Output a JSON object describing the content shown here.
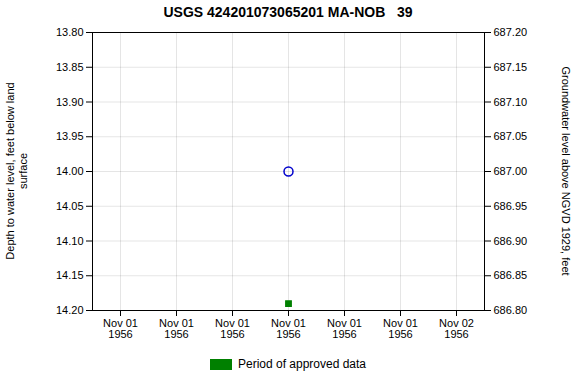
{
  "chart_data": {
    "type": "scatter",
    "title": "USGS 424201073065201 MA-NOB   39",
    "ylabel": "Depth to water level, feet below land\nsurface",
    "y2label": "Groundwater level above NGVD 1929, feet",
    "categories": [
      "Nov 01\n1956",
      "Nov 01\n1956",
      "Nov 01\n1956",
      "Nov 01\n1956",
      "Nov 01\n1956",
      "Nov 01\n1956",
      "Nov 02\n1956"
    ],
    "series": [
      {
        "color": "#0000cc",
        "marker": "circle",
        "values": [
          null,
          null,
          null,
          14.0,
          null,
          null,
          null
        ]
      },
      {
        "name": "Period of approved data",
        "color": "#008000",
        "marker": "square",
        "values": [
          null,
          null,
          null,
          14.19,
          null,
          null,
          null
        ]
      }
    ],
    "ylim": [
      14.2,
      13.8
    ],
    "yticks": [
      {
        "value": 13.8,
        "label": "13.80"
      },
      13.85,
      {
        "value": 13.9,
        "label": "13.90"
      },
      13.95,
      {
        "value": 14.0,
        "label": "14.00"
      },
      14.05,
      {
        "value": 14.1,
        "label": "14.10"
      },
      14.15,
      {
        "value": 14.2,
        "label": "14.20"
      }
    ],
    "y2lim": [
      686.8,
      687.2
    ],
    "y2ticks": [
      {
        "value": 687.2,
        "label": "687.20"
      },
      687.15,
      {
        "value": 687.1,
        "label": "687.10"
      },
      687.05,
      {
        "value": 687.0,
        "label": "687.00"
      },
      686.95,
      {
        "value": 686.9,
        "label": "686.90"
      },
      686.85,
      {
        "value": 686.8,
        "label": "686.80"
      }
    ],
    "grid": true,
    "legend": "bottom"
  }
}
